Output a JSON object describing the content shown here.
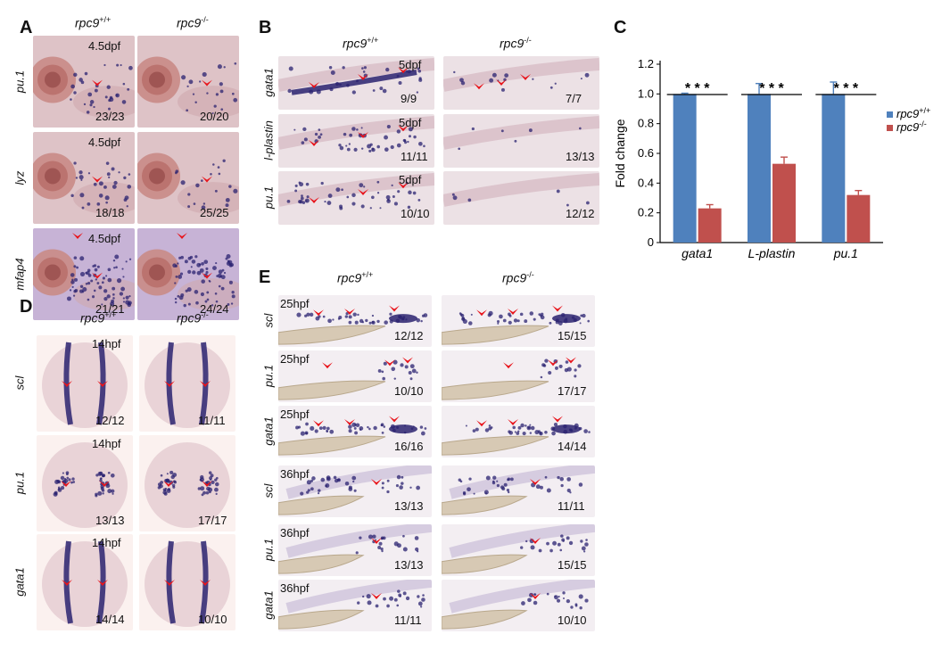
{
  "panels": {
    "A": {
      "letter": "A",
      "genotypes": [
        "rpc9",
        "+/+",
        "rpc9",
        "-/-"
      ],
      "rows": [
        {
          "label": "pu.1",
          "stage": "4.5dpf",
          "counts": [
            "23/23",
            "20/20"
          ]
        },
        {
          "label": "lyz",
          "stage": "4.5dpf",
          "counts": [
            "18/18",
            "25/25"
          ]
        },
        {
          "label": "mfap4",
          "stage": "4.5dpf",
          "counts": [
            "21/21",
            "24/24"
          ]
        }
      ]
    },
    "B": {
      "letter": "B",
      "rows": [
        {
          "label": "gata1",
          "stage": "5dpf",
          "counts": [
            "9/9",
            "7/7"
          ]
        },
        {
          "label": "l-plastin",
          "stage": "5dpf",
          "counts": [
            "11/11",
            "13/13"
          ]
        },
        {
          "label": "pu.1",
          "stage": "5dpf",
          "counts": [
            "10/10",
            "12/12"
          ]
        }
      ]
    },
    "C": {
      "letter": "C"
    },
    "D": {
      "letter": "D",
      "rows": [
        {
          "label": "scl",
          "stage": "14hpf",
          "counts": [
            "12/12",
            "11/11"
          ]
        },
        {
          "label": "pu.1",
          "stage": "14hpf",
          "counts": [
            "13/13",
            "17/17"
          ]
        },
        {
          "label": "gata1",
          "stage": "14hpf",
          "counts": [
            "14/14",
            "10/10"
          ]
        }
      ]
    },
    "E": {
      "letter": "E",
      "rows": [
        {
          "label": "scl",
          "stage": "25hpf",
          "counts": [
            "12/12",
            "15/15"
          ]
        },
        {
          "label": "pu.1",
          "stage": "25hpf",
          "counts": [
            "10/10",
            "17/17"
          ]
        },
        {
          "label": "gata1",
          "stage": "25hpf",
          "counts": [
            "16/16",
            "14/14"
          ]
        },
        {
          "label": "scl",
          "stage": "36hpf",
          "counts": [
            "13/13",
            "11/11"
          ]
        },
        {
          "label": "pu.1",
          "stage": "36hpf",
          "counts": [
            "13/13",
            "15/15"
          ]
        },
        {
          "label": "gata1",
          "stage": "36hpf",
          "counts": [
            "11/11",
            "10/10"
          ]
        }
      ]
    }
  },
  "colors": {
    "wt": "#4f81bd",
    "mut": "#c0504d",
    "arrow": "#e8141b",
    "stain": "#2a2270",
    "tissue": "#e9d9dc"
  },
  "chart_data": {
    "type": "bar",
    "categories": [
      "gata1",
      "L-plastin",
      "pu.1"
    ],
    "series": [
      {
        "name": "rpc9+/+",
        "values": [
          1.0,
          1.0,
          1.0
        ],
        "errors": [
          0.005,
          0.07,
          0.08
        ]
      },
      {
        "name": "rpc9-/-",
        "values": [
          0.23,
          0.53,
          0.32
        ],
        "errors": [
          0.025,
          0.045,
          0.03
        ]
      }
    ],
    "ylabel": "Fold change",
    "ylim": [
      0,
      1.2
    ],
    "yticks": [
      "0",
      "0.2",
      "0.4",
      "0.6",
      "0.8",
      "1.0",
      "1.2"
    ],
    "significance": [
      "* * *",
      "* * *",
      "* * *"
    ],
    "legend": [
      "rpc9",
      "+/+",
      "rpc9",
      "-/-"
    ],
    "legend_position": "right",
    "grid": false
  }
}
